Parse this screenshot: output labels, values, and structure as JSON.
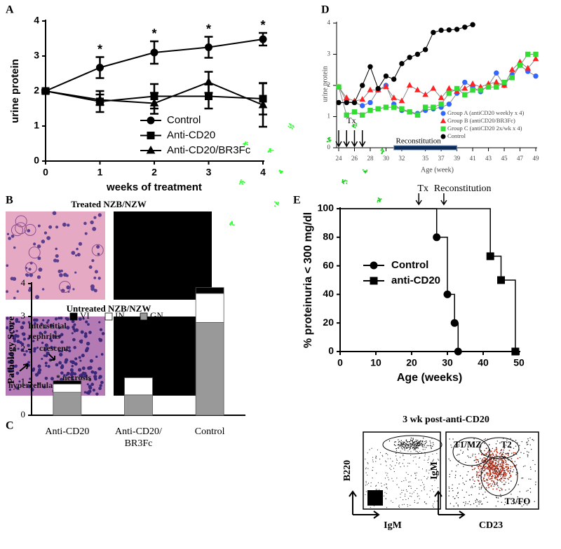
{
  "chart_data": [
    {
      "type": "line",
      "panel": "A",
      "xlabel": "weeks of treatment",
      "ylabel": "urine protein",
      "x": [
        0,
        1,
        2,
        3,
        4
      ],
      "xlim": [
        0,
        4
      ],
      "ylim": [
        0,
        4
      ],
      "xticks": [
        0,
        1,
        2,
        3,
        4
      ],
      "yticks": [
        0,
        1,
        2,
        3,
        4
      ],
      "series": [
        {
          "name": "Control",
          "marker": "circle",
          "color": "#000000",
          "values": [
            2,
            2.67,
            3.1,
            3.25,
            3.48
          ],
          "errors": [
            0.03,
            0.3,
            0.32,
            0.3,
            0.18
          ]
        },
        {
          "name": "Anti-CD20",
          "marker": "square",
          "color": "#000000",
          "values": [
            2,
            1.7,
            1.85,
            1.85,
            1.78
          ],
          "errors": [
            0.03,
            0.3,
            0.35,
            0.35,
            0.45
          ]
        },
        {
          "name": "Anti-CD20/BR3Fc",
          "marker": "triangle",
          "color": "#000000",
          "values": [
            2,
            1.75,
            1.65,
            2.25,
            1.6
          ],
          "errors": [
            0.03,
            0.15,
            0.3,
            0.3,
            0.62
          ]
        }
      ],
      "annotations": [
        {
          "x": 1,
          "label": "*"
        },
        {
          "x": 2,
          "label": "*"
        },
        {
          "x": 3,
          "label": "*"
        },
        {
          "x": 4,
          "label": "*"
        }
      ],
      "legend": "lower right"
    },
    {
      "type": "stacked-bar",
      "panel": "C",
      "ylabel": "Pathology Score",
      "categories": [
        "Anti-CD20",
        "Anti-CD20/BR3Fc",
        "Control"
      ],
      "ylim": [
        0,
        4
      ],
      "yticks": [
        0,
        1,
        2,
        3,
        4
      ],
      "series": [
        {
          "name": "GN",
          "color": "#999999",
          "values": [
            0.7,
            0.62,
            2.82
          ]
        },
        {
          "name": "IN",
          "color": "#ffffff",
          "values": [
            0.25,
            0.52,
            0.88
          ]
        },
        {
          "name": "VI",
          "color": "#000000",
          "values": [
            0.1,
            0,
            0.18
          ]
        }
      ],
      "legend": "upper left"
    },
    {
      "type": "line",
      "panel": "D",
      "xlabel": "Age (week)",
      "ylabel": "urine protein",
      "x": [
        24,
        25,
        26,
        27,
        28,
        29,
        30,
        31,
        32,
        33,
        34,
        35,
        36,
        37,
        38,
        39,
        40,
        41,
        42,
        43,
        44,
        45,
        46,
        47,
        48,
        49
      ],
      "xlim": [
        24,
        49
      ],
      "ylim": [
        0,
        4
      ],
      "xticks": [
        24,
        26,
        28,
        30,
        32,
        35,
        37,
        39,
        41,
        43,
        45,
        47,
        49
      ],
      "yticks": [
        0,
        1,
        2,
        3,
        4
      ],
      "series": [
        {
          "name": "Group A (antiCD20 weekly x 4)",
          "marker": "circle",
          "color": "#3366ff",
          "line_color": "#888888",
          "values": [
            1.95,
            1.5,
            1.45,
            1.35,
            1.45,
            1.85,
            2.0,
            1.4,
            1.2,
            1.15,
            1.1,
            1.2,
            1.25,
            1.3,
            1.4,
            1.75,
            2.1,
            1.95,
            1.8,
            2.0,
            2.4,
            2.0,
            2.35,
            2.65,
            2.45,
            2.3
          ]
        },
        {
          "name": "Group B (antiCD20/BR3Fc)",
          "marker": "triangle",
          "color": "#ff2222",
          "line_color": "#888888",
          "values": [
            1.95,
            1.6,
            1.5,
            1.55,
            1.85,
            1.85,
            1.95,
            1.6,
            1.5,
            2.0,
            1.85,
            1.7,
            1.9,
            1.6,
            1.9,
            1.8,
            1.9,
            2.05,
            1.95,
            2.05,
            2.1,
            2.0,
            2.5,
            2.75,
            2.55,
            2.85
          ]
        },
        {
          "name": "Group C (antiCD20 2x/wk x 4)",
          "marker": "square",
          "color": "#33dd33",
          "line_color": "#888888",
          "values": [
            1.95,
            1.05,
            1.15,
            1.05,
            1.2,
            1.25,
            1.3,
            1.3,
            1.25,
            1.15,
            1.05,
            1.3,
            1.3,
            1.4,
            1.75,
            1.9,
            1.7,
            1.85,
            1.85,
            1.95,
            1.95,
            2.1,
            2.25,
            2.65,
            3.0,
            3.0
          ]
        },
        {
          "name": "Control",
          "marker": "circle",
          "color": "#000000",
          "line_color": "#000000",
          "values": [
            1.45,
            1.45,
            1.45,
            2.0,
            2.6,
            1.9,
            2.3,
            2.2,
            2.7,
            2.9,
            3.0,
            3.15,
            3.7,
            3.77,
            3.78,
            3.8,
            3.87,
            3.95,
            null,
            null,
            null,
            null,
            null,
            null,
            null,
            null
          ]
        }
      ],
      "treatment": {
        "label": "Tx",
        "weeks": [
          24,
          25,
          26,
          27
        ]
      },
      "reconstitution": {
        "label": "Reconstitution",
        "start": 31,
        "end": 39
      },
      "legend": "lower right"
    },
    {
      "type": "step",
      "panel": "E",
      "xlabel": "Age (weeks)",
      "ylabel": "% proteinuria < 300 mg/dl",
      "xlim": [
        0,
        50
      ],
      "ylim": [
        0,
        100
      ],
      "xticks": [
        0,
        10,
        20,
        30,
        40,
        50
      ],
      "yticks": [
        0,
        20,
        40,
        60,
        80,
        100
      ],
      "series": [
        {
          "name": "Control",
          "marker": "circle",
          "color": "#000000",
          "x": [
            0,
            27,
            30,
            32,
            33
          ],
          "values": [
            100,
            80,
            40,
            20,
            0
          ]
        },
        {
          "name": "anti-CD20",
          "marker": "square",
          "color": "#000000",
          "x": [
            0,
            42,
            45,
            49
          ],
          "values": [
            100,
            66.7,
            50,
            0
          ]
        }
      ],
      "annotations": [
        {
          "x": 22,
          "label": "Tx"
        },
        {
          "x": 29,
          "label": "Reconstitution"
        }
      ],
      "legend": "center left"
    }
  ],
  "panel_b": {
    "letter": "B",
    "treated_title": "Treated NZB/NZW",
    "untreated_title": "Untreated NZB/NZW",
    "annotations": [
      "Interstitial",
      "nephritis",
      "crescent",
      "* necrosis",
      "hypercellularity"
    ]
  },
  "flow": {
    "title": "3 wk post-anti-CD20",
    "left_y": "B220",
    "left_x": "IgM",
    "right_y": "IgM",
    "right_x": "CD23",
    "gates": [
      "T1/MZ",
      "T2",
      "T3/FO"
    ]
  }
}
